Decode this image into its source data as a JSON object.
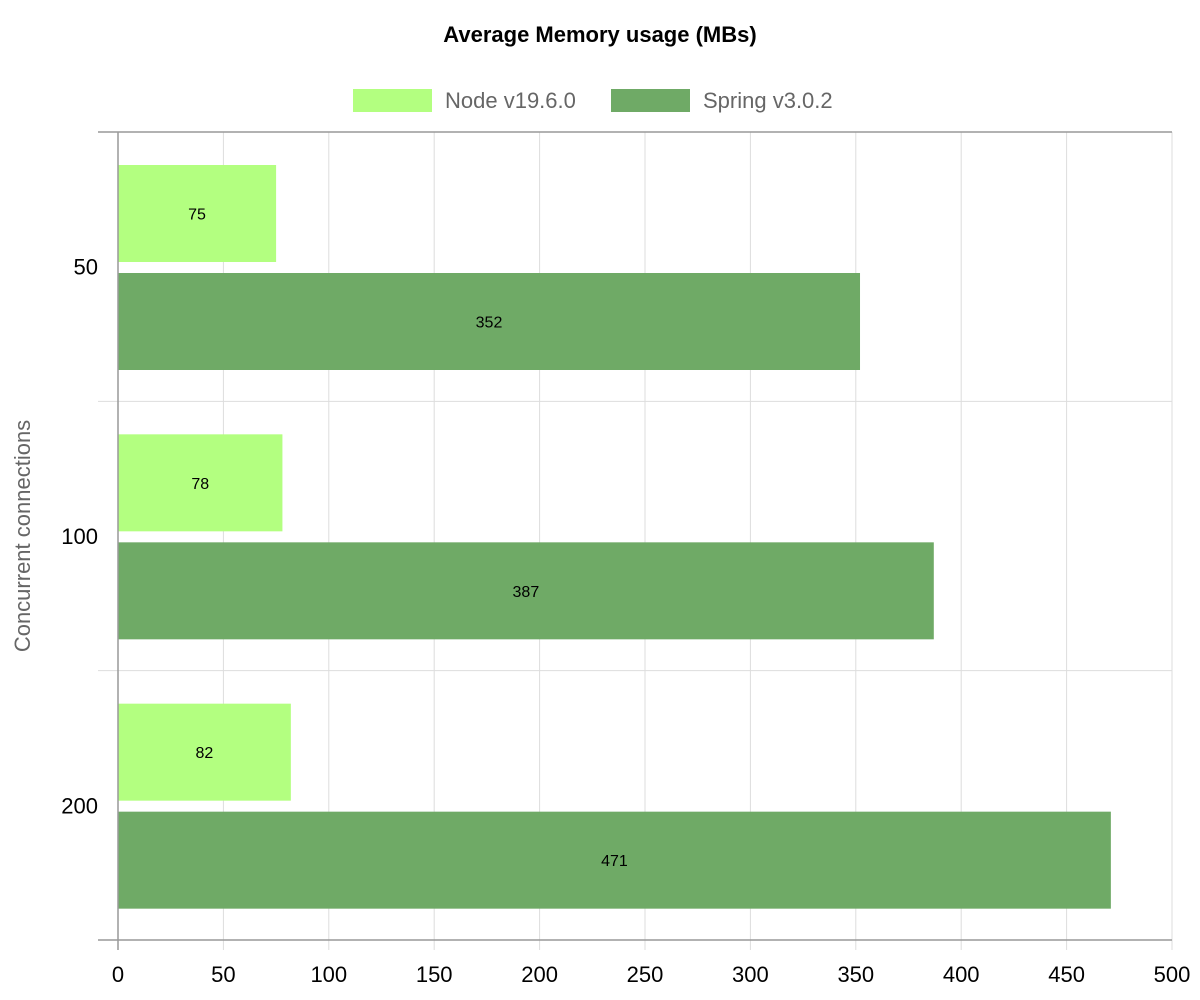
{
  "chart_data": {
    "type": "bar",
    "orientation": "horizontal",
    "title": "Average Memory usage (MBs)",
    "xlabel": "",
    "ylabel": "Concurrent connections",
    "categories": [
      "50",
      "100",
      "200"
    ],
    "series": [
      {
        "name": "Node v19.6.0",
        "values": [
          75,
          78,
          82
        ],
        "color": "#b3ff80"
      },
      {
        "name": "Spring v3.0.2",
        "values": [
          352,
          387,
          471
        ],
        "color": "#6faa66"
      }
    ],
    "xlim": [
      0,
      500
    ],
    "x_ticks": [
      0,
      50,
      100,
      150,
      200,
      250,
      300,
      350,
      400,
      450,
      500
    ],
    "grid": true,
    "legend_position": "top"
  }
}
